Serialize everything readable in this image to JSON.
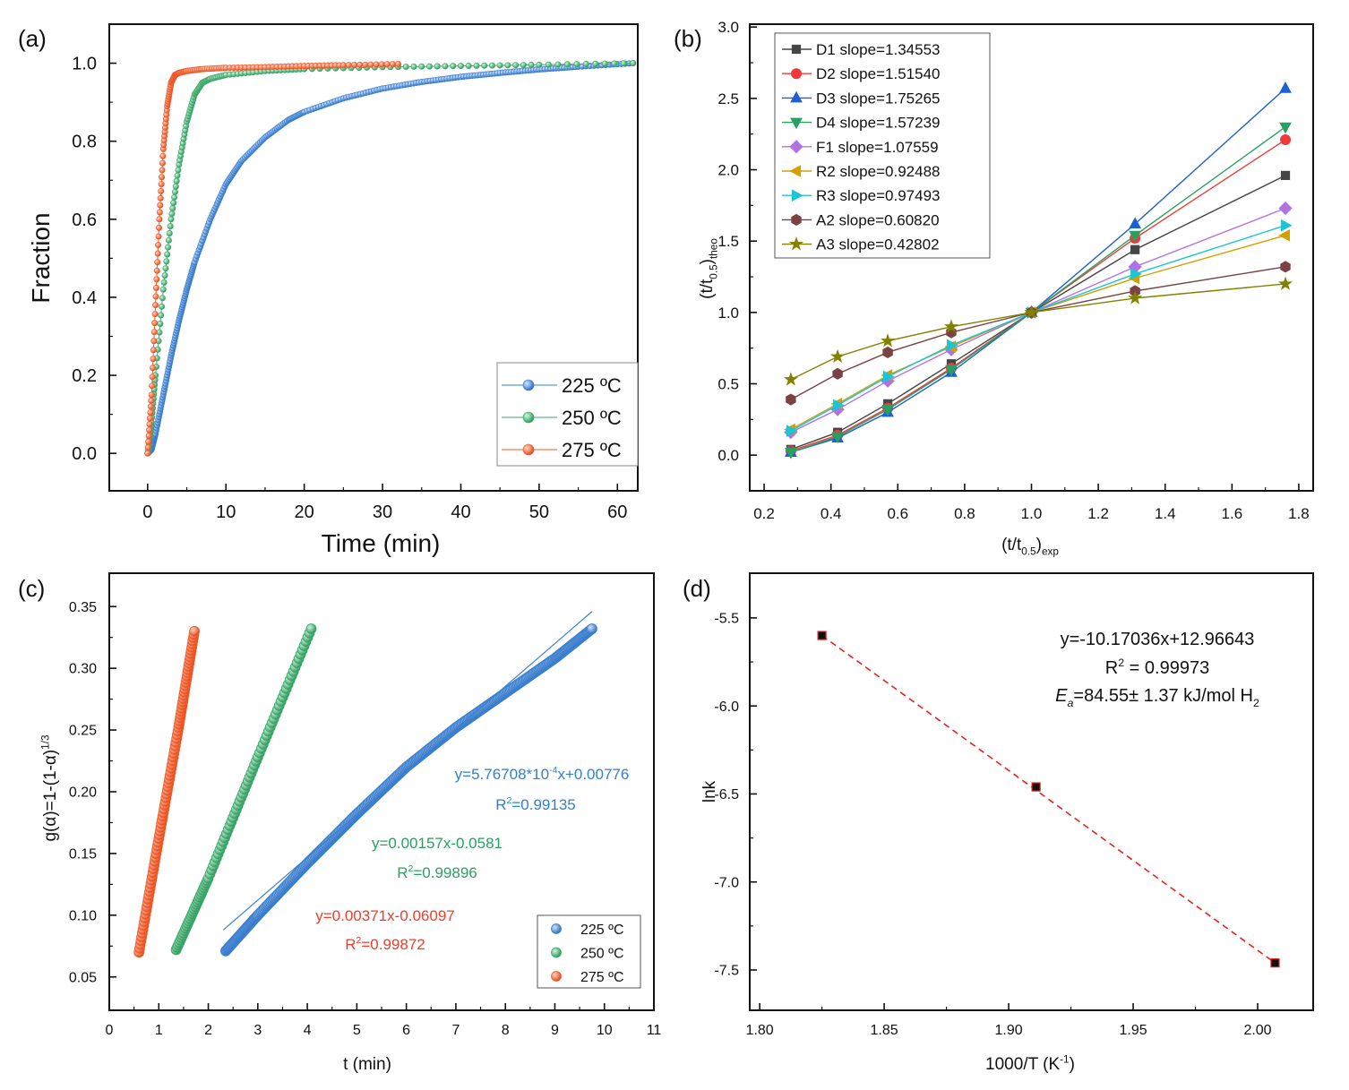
{
  "chart_data": [
    {
      "panel": "(a)",
      "type": "scatter",
      "xlabel": "Time (min)",
      "ylabel": "Fraction",
      "xlim": [
        -4.9,
        62.6
      ],
      "ylim": [
        -0.096,
        1.1
      ],
      "xticks": [
        0,
        10,
        20,
        30,
        40,
        50,
        60
      ],
      "xtick_labels": [
        "0",
        "10",
        "20",
        "30",
        "40",
        "50",
        "60"
      ],
      "yticks": [
        0,
        0.2,
        0.4,
        0.6,
        0.8,
        1.0
      ],
      "ytick_labels": [
        "0.0",
        "0.2",
        "0.4",
        "0.6",
        "0.8",
        "1.0"
      ],
      "legend_position": "bottom-right",
      "series": [
        {
          "name": "225 ºC",
          "color": "#3a7fcf",
          "x": [
            0,
            0.5,
            1,
            2,
            3,
            4,
            5,
            6,
            8,
            10,
            12,
            15,
            18,
            20,
            25,
            30,
            35,
            40,
            45,
            50,
            55,
            62
          ],
          "y": [
            0,
            0.01,
            0.05,
            0.15,
            0.25,
            0.34,
            0.42,
            0.49,
            0.6,
            0.69,
            0.75,
            0.81,
            0.855,
            0.875,
            0.91,
            0.935,
            0.952,
            0.965,
            0.975,
            0.984,
            0.991,
            1.0
          ]
        },
        {
          "name": "250 ºC",
          "color": "#3aaa6a",
          "x": [
            0,
            0.5,
            1,
            2,
            3,
            4,
            5,
            6,
            7,
            8,
            10,
            15,
            20,
            30,
            40,
            50,
            62
          ],
          "y": [
            0,
            0.08,
            0.2,
            0.42,
            0.6,
            0.74,
            0.85,
            0.92,
            0.95,
            0.96,
            0.97,
            0.98,
            0.985,
            0.99,
            0.993,
            0.996,
            1.0
          ]
        },
        {
          "name": "275 ºC",
          "color": "#f05a28",
          "x": [
            0,
            0.5,
            1,
            1.5,
            2,
            2.5,
            3,
            3.5,
            4,
            5,
            7,
            10,
            15,
            20,
            25,
            32
          ],
          "y": [
            0,
            0.15,
            0.38,
            0.6,
            0.78,
            0.89,
            0.95,
            0.97,
            0.975,
            0.98,
            0.985,
            0.988,
            0.99,
            0.993,
            0.995,
            0.998
          ]
        }
      ]
    },
    {
      "panel": "(b)",
      "type": "line",
      "xlabel": {
        "main": "(t/t",
        "sub": "0.5",
        "close": ")",
        "sub2": "exp"
      },
      "ylabel": {
        "main": "(t/t",
        "sub": "0.5",
        "close": ")",
        "sub2": "theo"
      },
      "xlim": [
        0.157,
        1.843
      ],
      "ylim": [
        -0.25,
        3.02
      ],
      "xticks": [
        0.2,
        0.4,
        0.6,
        0.8,
        1.0,
        1.2,
        1.4,
        1.6,
        1.8
      ],
      "xtick_labels": [
        "0.2",
        "0.4",
        "0.6",
        "0.8",
        "1.0",
        "1.2",
        "1.4",
        "1.6",
        "1.8"
      ],
      "yticks": [
        0,
        0.5,
        1.0,
        1.5,
        2.0,
        2.5,
        3.0
      ],
      "ytick_labels": [
        "0.0",
        "0.5",
        "1.0",
        "1.5",
        "2.0",
        "2.5",
        "3.0"
      ],
      "legend_position": "top-left",
      "x": [
        0.28,
        0.42,
        0.57,
        0.76,
        1.0,
        1.31,
        1.76
      ],
      "series": [
        {
          "name": "D1 slope=1.34553",
          "color": "#454545",
          "marker": "square",
          "values": [
            0.04,
            0.16,
            0.36,
            0.64,
            1,
            1.44,
            1.96
          ]
        },
        {
          "name": "D2 slope=1.51540",
          "color": "#f03a3a",
          "marker": "circle",
          "values": [
            0.03,
            0.14,
            0.33,
            0.61,
            1,
            1.52,
            2.21
          ]
        },
        {
          "name": "D3 slope=1.75265",
          "color": "#1e5fd6",
          "marker": "triangle-up",
          "values": [
            0.02,
            0.12,
            0.3,
            0.58,
            1,
            1.62,
            2.57
          ]
        },
        {
          "name": "D4 slope=1.57239",
          "color": "#2aa060",
          "marker": "triangle-down",
          "values": [
            0.02,
            0.13,
            0.32,
            0.6,
            1,
            1.54,
            2.3
          ]
        },
        {
          "name": "F1 slope=1.07559",
          "color": "#b073e6",
          "marker": "diamond",
          "values": [
            0.16,
            0.32,
            0.52,
            0.74,
            1,
            1.32,
            1.73
          ]
        },
        {
          "name": "R2 slope=0.92488",
          "color": "#d4a000",
          "marker": "triangle-left",
          "values": [
            0.18,
            0.36,
            0.56,
            0.76,
            1,
            1.24,
            1.54
          ]
        },
        {
          "name": "R3 slope=0.97493",
          "color": "#1cc4d4",
          "marker": "triangle-right",
          "values": [
            0.17,
            0.35,
            0.55,
            0.77,
            1,
            1.27,
            1.61
          ]
        },
        {
          "name": "A2 slope=0.60820",
          "color": "#7a4242",
          "marker": "hexagon",
          "values": [
            0.39,
            0.57,
            0.72,
            0.86,
            1,
            1.15,
            1.32
          ]
        },
        {
          "name": "A3 slope=0.42802",
          "color": "#828200",
          "marker": "star",
          "values": [
            0.53,
            0.69,
            0.8,
            0.9,
            1,
            1.1,
            1.2
          ]
        }
      ]
    },
    {
      "panel": "(c)",
      "type": "scatter",
      "xlabel": "t (min)",
      "ylabel": {
        "main": "g(α)=1-(1-α)",
        "sup": "1/3"
      },
      "xlim": [
        0,
        11
      ],
      "ylim": [
        0.023,
        0.377
      ],
      "xticks": [
        0,
        1,
        2,
        3,
        4,
        5,
        6,
        7,
        8,
        9,
        10,
        11
      ],
      "xtick_labels": [
        "0",
        "1",
        "2",
        "3",
        "4",
        "5",
        "6",
        "7",
        "8",
        "9",
        "10",
        "11"
      ],
      "yticks": [
        0.05,
        0.1,
        0.15,
        0.2,
        0.25,
        0.3,
        0.35
      ],
      "ytick_labels": [
        "0.05",
        "0.10",
        "0.15",
        "0.20",
        "0.25",
        "0.30",
        "0.35"
      ],
      "legend_position": "bottom-right",
      "series": [
        {
          "name": "225 ºC",
          "color": "#3a7fcf",
          "x": [
            2.35,
            3,
            4,
            5,
            6,
            7,
            8,
            9,
            9.75
          ],
          "y": [
            0.071,
            0.1,
            0.142,
            0.182,
            0.22,
            0.252,
            0.28,
            0.308,
            0.332
          ],
          "fit": {
            "x": [
              2.3,
              9.75
            ],
            "y": [
              0.088,
              0.346
            ]
          },
          "annotation": [
            [
              {
                "t": "y=5.76708*10"
              },
              {
                "t": "-4",
                "s": "sup"
              },
              {
                "t": "x+0.00776"
              }
            ],
            [
              {
                "t": "R"
              },
              {
                "t": "2",
                "s": "sup"
              },
              {
                "t": "=0.99135"
              }
            ]
          ]
        },
        {
          "name": "250 ºC",
          "color": "#3aaa6a",
          "x": [
            1.35,
            2,
            3,
            4.08
          ],
          "y": [
            0.072,
            0.13,
            0.228,
            0.332
          ],
          "annotation": [
            [
              {
                "t": "y=0.00157x-0.0581"
              }
            ],
            [
              {
                "t": "R"
              },
              {
                "t": "2",
                "s": "sup"
              },
              {
                "t": "=0.99896"
              }
            ]
          ]
        },
        {
          "name": "275 ºC",
          "color": "#f05a28",
          "x": [
            0.6,
            1.0,
            1.4,
            1.72
          ],
          "y": [
            0.07,
            0.162,
            0.252,
            0.33
          ],
          "annotation": [
            [
              {
                "t": "y=0.00371x-0.06097"
              }
            ],
            [
              {
                "t": "R"
              },
              {
                "t": "2",
                "s": "sup"
              },
              {
                "t": "=0.99872"
              }
            ]
          ]
        }
      ]
    },
    {
      "panel": "(d)",
      "type": "scatter",
      "xlabel": {
        "main": "1000/T (K",
        "sup": "-1",
        "close": ")"
      },
      "ylabel": "lnk",
      "xlim": [
        1.796,
        2.0223
      ],
      "ylim": [
        -7.729,
        -5.246
      ],
      "xticks": [
        1.8,
        1.85,
        1.9,
        1.95,
        2.0
      ],
      "xtick_labels": [
        "1.80",
        "1.85",
        "1.90",
        "1.95",
        "2.00"
      ],
      "yticks": [
        -5.5,
        -6.0,
        -6.5,
        -7.0,
        -7.5
      ],
      "ytick_labels": [
        "-5.5",
        "-6.0",
        "-6.5",
        "-7.0",
        "-7.5"
      ],
      "points": {
        "x": [
          1.825,
          1.911,
          2.007
        ],
        "y": [
          -5.6,
          -6.46,
          -7.46
        ],
        "color": "#111111",
        "edge": "#e02020"
      },
      "fit": {
        "slope": -10.17036,
        "intercept": 12.96643,
        "color": "#e82020"
      },
      "annotation": [
        [
          {
            "t": "y=-10.17036x+12.96643"
          }
        ],
        [
          {
            "t": "R"
          },
          {
            "t": "2",
            "s": "sup"
          },
          {
            "t": " = 0.99973"
          }
        ],
        [
          {
            "t": "E",
            "s": "it"
          },
          {
            "t": "a",
            "s": "subit"
          },
          {
            "t": "=84.55± 1.37 kJ/mol H"
          },
          {
            "t": "2",
            "s": "sub"
          }
        ]
      ]
    }
  ]
}
